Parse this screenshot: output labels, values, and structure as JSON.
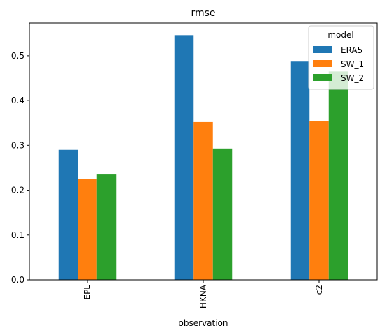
{
  "chart_data": {
    "type": "bar",
    "title": "rmse",
    "xlabel": "observation",
    "ylabel": "",
    "categories": [
      "EPL",
      "HKNA",
      "c2"
    ],
    "series": [
      {
        "name": "ERA5",
        "color": "#1f77b4",
        "values": [
          0.29,
          0.546,
          0.487
        ]
      },
      {
        "name": "SW_1",
        "color": "#ff7f0e",
        "values": [
          0.225,
          0.352,
          0.354
        ]
      },
      {
        "name": "SW_2",
        "color": "#2ca02c",
        "values": [
          0.235,
          0.293,
          0.465
        ]
      }
    ],
    "ylim": [
      0,
      0.573
    ],
    "yticks": [
      "0.0",
      "0.1",
      "0.2",
      "0.3",
      "0.4",
      "0.5"
    ],
    "legend": {
      "title": "model",
      "position": "top-right"
    },
    "grid": false
  }
}
